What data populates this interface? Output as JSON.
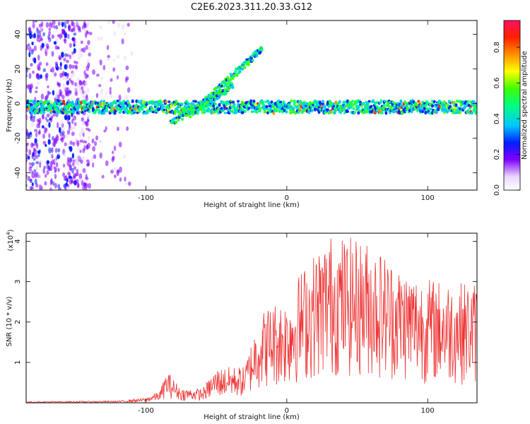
{
  "figure_title": "C2E6.2023.311.20.33.G12",
  "chart_data": [
    {
      "type": "heatmap",
      "xlabel": "Height of straight line (km)",
      "ylabel": "Frequency (Hz)",
      "xlim": [
        -185,
        135
      ],
      "ylim": [
        -50,
        48
      ],
      "x_ticks": [
        -100,
        0,
        100
      ],
      "y_ticks": [
        -40,
        -20,
        0,
        20,
        40
      ],
      "colorbar": {
        "label": "Normalized spectral amplitude",
        "range": [
          0,
          0.95
        ],
        "ticks": [
          0.0,
          0.2,
          0.4,
          0.6,
          0.8
        ]
      },
      "features": [
        {
          "x_start": -185,
          "x_end": 135,
          "freq": -2
        },
        {
          "x_start": -82,
          "x_end": -38,
          "freq_start": -11,
          "freq_end": 10
        },
        {
          "x_start": -68,
          "x_end": -17,
          "freq_start": -6,
          "freq_end": 32
        }
      ],
      "colors": {
        "strong": "#ff0000",
        "mid": "#00ff80",
        "weak": "#6000ff"
      }
    },
    {
      "type": "line",
      "xlabel": "Height of straight line (km)",
      "ylabel": "SNR (10 * v/v)",
      "y_multiplier": "(x10",
      "y_exponent": "4",
      "xlim": [
        -185,
        135
      ],
      "ylim": [
        0,
        4.2
      ],
      "x_ticks": [
        -100,
        0,
        100
      ],
      "y_ticks": [
        1,
        2,
        3,
        4
      ],
      "line_color": "#ee3333",
      "envelope": [
        {
          "x": -185,
          "y": 0.03
        },
        {
          "x": -120,
          "y": 0.05
        },
        {
          "x": -100,
          "y": 0.12
        },
        {
          "x": -90,
          "y": 0.3
        },
        {
          "x": -85,
          "y": 0.8
        },
        {
          "x": -75,
          "y": 0.35
        },
        {
          "x": -60,
          "y": 0.35
        },
        {
          "x": -50,
          "y": 0.85
        },
        {
          "x": -40,
          "y": 0.9
        },
        {
          "x": -30,
          "y": 0.9
        },
        {
          "x": -20,
          "y": 2.2
        },
        {
          "x": -10,
          "y": 2.5
        },
        {
          "x": 0,
          "y": 2.6
        },
        {
          "x": 10,
          "y": 3.3
        },
        {
          "x": 30,
          "y": 4.2
        },
        {
          "x": 60,
          "y": 4.0
        },
        {
          "x": 80,
          "y": 3.4
        },
        {
          "x": 100,
          "y": 3.1
        },
        {
          "x": 120,
          "y": 3.0
        },
        {
          "x": 135,
          "y": 3.0
        }
      ]
    }
  ]
}
